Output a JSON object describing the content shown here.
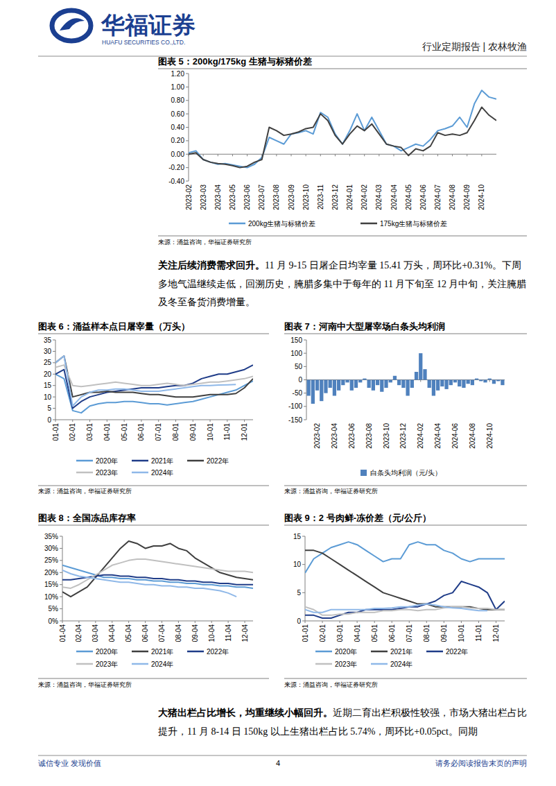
{
  "header": {
    "logo_cn": "华福证券",
    "logo_en": "HUAFU SECURITIES CO.,LTD.",
    "report_type": "行业定期报告 | 农林牧渔"
  },
  "paragraphs": [
    {
      "lead": "关注后续消费需求回升。",
      "text": "11 月 9-15 日屠企日均宰量 15.41 万头，周环比+0.31%。下周多地气温继续走低，回溯历史，腌腊多集中于每年的 11 月下旬至 12 月中旬，关注腌腊及冬至备货消费增量。"
    },
    {
      "lead": "大猪出栏占比增长，均重继续小幅回升。",
      "text": "近期二育出栏积极性较强，市场大猪出栏占比提升，11 月 8-14 日 150kg 以上生猪出栏占比 5.74%，周环比+0.05pct。同期"
    }
  ],
  "footer": {
    "left": "诚信专业  发现价值",
    "page": "4",
    "right": "请务必阅读报告末页的声明"
  },
  "chart_data": [
    {
      "type": "line",
      "title": "图表 5：200kg/175kg 生猪与标猪价差",
      "source": "来源：涌益咨询，华福证券研究所",
      "categories": [
        "2023-02",
        null,
        "2023-03",
        null,
        "2023-04",
        null,
        "2023-05",
        null,
        "2023-06",
        null,
        "2023-07",
        null,
        "2023-08",
        null,
        "2023-09",
        null,
        "2023-10",
        null,
        "2023-11",
        null,
        "2023-12",
        null,
        "2024-01",
        null,
        "2024-02",
        null,
        "2024-03",
        null,
        "2024-04",
        null,
        "2024-05",
        null,
        "2024-06",
        null,
        "2024-07",
        null,
        "2024-08",
        null,
        "2024-09",
        null,
        "2024-10",
        null,
        null
      ],
      "series": [
        {
          "name": "200kg生猪与标猪价差",
          "color": "#5b9bd5",
          "values": [
            0.02,
            0.05,
            -0.08,
            -0.12,
            -0.15,
            -0.14,
            -0.16,
            -0.18,
            -0.2,
            -0.15,
            -0.05,
            0.25,
            0.2,
            0.15,
            0.3,
            0.32,
            0.35,
            0.3,
            0.62,
            0.55,
            0.3,
            0.15,
            0.35,
            0.6,
            0.35,
            0.55,
            0.35,
            0.15,
            0.12,
            0.05,
            0.1,
            0.15,
            0.12,
            0.22,
            0.35,
            0.38,
            0.42,
            0.55,
            0.4,
            0.75,
            0.95,
            0.85,
            0.82
          ]
        },
        {
          "name": "175kg生猪与标猪价差",
          "color": "#404040",
          "values": [
            0.0,
            0.02,
            -0.08,
            -0.12,
            -0.14,
            -0.15,
            -0.17,
            -0.2,
            -0.18,
            -0.12,
            -0.08,
            0.4,
            0.35,
            0.28,
            0.3,
            0.33,
            0.38,
            0.4,
            0.6,
            0.5,
            0.28,
            0.15,
            0.3,
            0.42,
            0.35,
            0.45,
            0.3,
            0.15,
            0.12,
            0.1,
            -0.02,
            0.08,
            0.05,
            0.12,
            0.32,
            0.28,
            0.3,
            0.28,
            0.32,
            0.5,
            0.7,
            0.58,
            0.5
          ]
        }
      ],
      "ylim": [
        -0.4,
        1.2
      ],
      "yticks": [
        {
          "value": 1.2,
          "label": "1.20"
        },
        {
          "value": 1.0,
          "label": "1.00"
        },
        {
          "value": 0.8,
          "label": "0.80"
        },
        {
          "value": 0.6,
          "label": "0.60"
        },
        {
          "value": 0.4,
          "label": "0.40"
        },
        {
          "value": 0.2,
          "label": "0.20"
        },
        {
          "value": 0,
          "label": "0.00"
        },
        {
          "value": -0.2,
          "label": "-0.20"
        },
        {
          "value": -0.4,
          "label": "-0.40"
        }
      ],
      "grid": false,
      "legend": "bottom"
    },
    {
      "type": "line",
      "title": "图表 6：涌益样本点日屠宰量（万头）",
      "source": "来源：涌益咨询，华福证券研究所",
      "categories": [
        "01-01",
        null,
        "02-01",
        null,
        "03-01",
        null,
        "04-01",
        null,
        "05-01",
        null,
        "06-01",
        null,
        "07-01",
        null,
        "08-01",
        null,
        "09-01",
        null,
        "10-01",
        null,
        "11-01",
        null,
        "12-01",
        null
      ],
      "series": [
        {
          "name": "2020年",
          "color": "#5b9bd5",
          "values": [
            20,
            18,
            4,
            3,
            6,
            7,
            7.5,
            7.5,
            8,
            8,
            7.5,
            7,
            7,
            6.5,
            7,
            7.5,
            8,
            9,
            10,
            11,
            12,
            13,
            15,
            17
          ]
        },
        {
          "name": "2021年",
          "color": "#1f3c88",
          "values": [
            20,
            22,
            5,
            8,
            10,
            11,
            12,
            12.5,
            13,
            13.5,
            14,
            14,
            14,
            14.5,
            15,
            15,
            16,
            18,
            19,
            20,
            20,
            21,
            22,
            24
          ]
        },
        {
          "name": "2022年",
          "color": "#3f3f3f",
          "values": [
            25,
            28,
            10,
            11,
            12,
            12,
            12.5,
            12,
            12,
            12,
            11.5,
            11,
            11,
            10.5,
            10,
            10,
            10,
            10.5,
            11,
            11,
            11,
            11.5,
            14,
            18
          ]
        },
        {
          "name": "2023年",
          "color": "#c0c0c0",
          "values": [
            23,
            24,
            15,
            14.5,
            15,
            15.5,
            16,
            16.5,
            16,
            15.5,
            15,
            15,
            15.5,
            16,
            15.5,
            15,
            15.5,
            16,
            16.5,
            16.5,
            17,
            17.5,
            18,
            19
          ]
        },
        {
          "name": "2024年",
          "color": "#8fb8e8",
          "values": [
            25,
            28,
            6,
            10,
            12,
            13,
            13,
            13.5,
            13.5,
            13,
            12.5,
            12.5,
            12.5,
            13,
            13.5,
            14,
            14.5,
            15,
            15,
            15.2,
            15.3,
            15.41,
            null,
            null
          ]
        }
      ],
      "ylim": [
        0,
        35
      ],
      "yticks": [
        0,
        5,
        10,
        15,
        20,
        25,
        30,
        35
      ],
      "grid": false,
      "legend": "bottom"
    },
    {
      "type": "bar",
      "title": "图表 7：河南中大型屠宰场白条头均利润",
      "source": "来源：涌益咨询，华福证券研究所",
      "categories": [
        null,
        null,
        "2023-02",
        null,
        null,
        null,
        "2023-04",
        null,
        null,
        null,
        "2023-06",
        null,
        null,
        null,
        "2023-08",
        null,
        null,
        null,
        "2023-10",
        null,
        null,
        null,
        "2023-12",
        null,
        null,
        null,
        "2024-02",
        null,
        null,
        null,
        "2024-04",
        null,
        null,
        null,
        "2024-06",
        null,
        null,
        null,
        "2024-08",
        null,
        null,
        null,
        "2024-10",
        null,
        null,
        null
      ],
      "series": [
        {
          "name": "白条头均利润（元/头）",
          "color": "#4f81bd",
          "values": [
            -60,
            -90,
            -40,
            -80,
            -50,
            -30,
            -60,
            -40,
            -20,
            -10,
            -40,
            -30,
            -10,
            5,
            -30,
            -40,
            -20,
            -45,
            -30,
            -10,
            15,
            -20,
            -30,
            -60,
            -30,
            30,
            100,
            40,
            -30,
            -60,
            -40,
            -25,
            -35,
            -20,
            -10,
            -25,
            -30,
            -15,
            -20,
            5,
            -5,
            -10,
            5,
            -15,
            -5,
            -20
          ]
        }
      ],
      "ylim": [
        -150,
        150
      ],
      "yticks": [
        150,
        100,
        50,
        0,
        -50,
        -100,
        -150
      ],
      "grid": false,
      "legend": "bottom"
    },
    {
      "type": "line",
      "title": "图表 8：全国冻品库存率",
      "source": "来源：涌益咨询，华福证券研究所",
      "categories": [
        "01-04",
        null,
        "02-04",
        null,
        "03-04",
        null,
        "04-04",
        null,
        "05-04",
        null,
        "06-04",
        null,
        "07-04",
        null,
        "08-04",
        null,
        "09-04",
        null,
        "10-04",
        null,
        "11-04",
        null,
        "12-04",
        null
      ],
      "series": [
        {
          "name": "2020年",
          "color": "#5b9bd5",
          "values": [
            23,
            22,
            21,
            20,
            19,
            18,
            18,
            17.5,
            17.5,
            17,
            17,
            16.5,
            16.5,
            16,
            16,
            15.5,
            15.5,
            15,
            15,
            14.5,
            14.5,
            14,
            14,
            13.5
          ]
        },
        {
          "name": "2021年",
          "color": "#3f3f3f",
          "values": [
            12,
            10,
            12,
            14,
            18,
            22,
            26,
            30,
            33,
            32,
            30,
            31,
            31,
            32,
            30,
            29,
            26,
            24,
            22,
            20,
            19,
            18,
            17.5,
            17
          ]
        },
        {
          "name": "2022年",
          "color": "#1f3c88",
          "values": [
            17,
            17,
            17.5,
            18,
            18.5,
            19,
            19,
            18.5,
            18.5,
            18,
            18,
            17.5,
            17.5,
            17,
            17,
            16.5,
            16.5,
            16,
            16,
            15.5,
            15.5,
            15,
            15,
            15
          ]
        },
        {
          "name": "2023年",
          "color": "#c0c0c0",
          "values": [
            14,
            13.5,
            15,
            17,
            19,
            21,
            23,
            24,
            25,
            25.5,
            25.5,
            25,
            24.5,
            24,
            23.5,
            23,
            22.5,
            22,
            21.5,
            21,
            20.5,
            20.5,
            20.5,
            20
          ]
        },
        {
          "name": "2024年",
          "color": "#8fb8e8",
          "values": [
            21,
            19.5,
            18.5,
            18,
            17.5,
            17,
            16.5,
            16,
            16,
            15.5,
            15,
            15,
            14.5,
            14.5,
            14,
            14,
            13.5,
            13.5,
            13,
            12.5,
            11.5,
            10,
            null,
            null
          ]
        }
      ],
      "ylim": [
        0,
        35
      ],
      "yticks": [
        {
          "value": 35,
          "label": "35%"
        },
        {
          "value": 30,
          "label": "30%"
        },
        {
          "value": 25,
          "label": "25%"
        },
        {
          "value": 20,
          "label": "20%"
        },
        {
          "value": 15,
          "label": "15%"
        },
        {
          "value": 10,
          "label": "10%"
        },
        {
          "value": 5,
          "label": "5%"
        },
        {
          "value": 0,
          "label": "0%"
        }
      ],
      "grid": false,
      "legend": "bottom"
    },
    {
      "type": "line",
      "title": "图表 9：2 号肉鲜-冻价差（元/公斤）",
      "source": "来源：涌益咨询，华福证券研究所",
      "categories": [
        "01-01",
        null,
        "02-01",
        null,
        "03-01",
        null,
        "04-01",
        null,
        "05-01",
        null,
        "06-01",
        null,
        "07-01",
        null,
        "08-01",
        null,
        "09-01",
        null,
        "10-01",
        null,
        "11-01",
        null,
        "12-01",
        null
      ],
      "series": [
        {
          "name": "2020年",
          "color": "#5b9bd5",
          "values": [
            8.5,
            11,
            12,
            13,
            13.5,
            14,
            13.5,
            12.5,
            11.5,
            10.5,
            11,
            11,
            13.5,
            14,
            13.5,
            13.5,
            12.5,
            12,
            11,
            10.5,
            11,
            11,
            11,
            11
          ]
        },
        {
          "name": "2021年",
          "color": "#3f3f3f",
          "values": [
            12.5,
            12.5,
            12,
            11,
            10,
            9,
            8,
            7,
            6,
            5,
            4.5,
            4,
            3.5,
            3,
            3,
            2.5,
            2.5,
            2.5,
            2.5,
            2.5,
            2.2,
            2,
            2,
            2
          ]
        },
        {
          "name": "2022年",
          "color": "#1f3c88",
          "values": [
            1,
            1,
            0.5,
            0.5,
            1,
            1.5,
            1.5,
            2,
            2,
            2,
            2,
            2.2,
            2.5,
            2.5,
            3,
            3.5,
            4.5,
            5,
            7,
            6.5,
            6,
            5,
            2,
            3.5
          ]
        },
        {
          "name": "2023年",
          "color": "#c0c0c0",
          "values": [
            2.5,
            2,
            1,
            1,
            1.2,
            1.2,
            1.5,
            1.5,
            1.5,
            1.8,
            1.8,
            2,
            2,
            1.8,
            2,
            2,
            2.3,
            2.5,
            2.5,
            2.3,
            2.2,
            2.2,
            2,
            2
          ]
        },
        {
          "name": "2024年",
          "color": "#8fb8e8",
          "values": [
            2,
            1.5,
            1.5,
            2,
            2,
            2,
            2,
            2,
            2.2,
            2.2,
            2.3,
            2.5,
            2.5,
            2.8,
            3,
            2.8,
            2.5,
            2.3,
            2.2,
            2,
            1.8,
            1.8,
            null,
            null
          ]
        }
      ],
      "ylim": [
        0,
        15
      ],
      "yticks": [
        15,
        10,
        5,
        0
      ],
      "grid": false,
      "legend": "bottom"
    }
  ]
}
